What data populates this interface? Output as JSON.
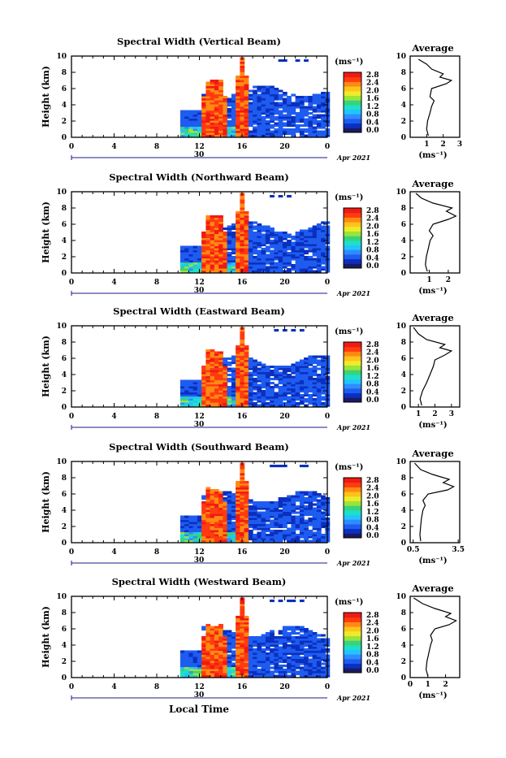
{
  "figure": {
    "x_axis_title": "Local Time",
    "date_label": "Apr 2021",
    "day_label": "30",
    "colorbar_unit": "(ms⁻¹)",
    "colorbar_ticks": [
      "2.8",
      "2.4",
      "2.0",
      "1.6",
      "1.2",
      "0.8",
      "0.4",
      "0.0"
    ],
    "colors": {
      "scale": [
        "#1a1a5e",
        "#0b2fbf",
        "#1e5cf0",
        "#2f8cff",
        "#22c4ff",
        "#1de0c8",
        "#3ad27a",
        "#9be43a",
        "#ecec2a",
        "#ffc21a",
        "#ff8a12",
        "#ff3b10",
        "#f01a14"
      ],
      "axis": "#000000",
      "background": "#ffffff"
    }
  },
  "chart_data": [
    {
      "type": "heatmap",
      "title": "Spectral Width (Vertical Beam)",
      "xlabel": "",
      "ylabel": "Height (km)",
      "xlim": [
        0,
        24
      ],
      "ylim": [
        0,
        10
      ],
      "x_ticks": [
        "0",
        "4",
        "8",
        "12",
        "16",
        "20",
        "0"
      ],
      "y_ticks": [
        "0",
        "2",
        "4",
        "6",
        "8",
        "10"
      ],
      "profile": {
        "title": "Average",
        "xlabel": "(ms⁻¹)",
        "xlim": [
          0,
          3
        ],
        "x_ticks": [
          "1",
          "2",
          "3"
        ],
        "y_ticks": [
          "0",
          "2",
          "4",
          "6",
          "8",
          "10"
        ],
        "points": [
          [
            1.1,
            0.2
          ],
          [
            1.0,
            1.0
          ],
          [
            1.05,
            2.0
          ],
          [
            1.2,
            3.0
          ],
          [
            1.3,
            3.8
          ],
          [
            1.45,
            4.5
          ],
          [
            1.2,
            5.0
          ],
          [
            1.3,
            6.0
          ],
          [
            2.2,
            6.6
          ],
          [
            2.5,
            7.0
          ],
          [
            1.8,
            7.4
          ],
          [
            2.0,
            7.8
          ],
          [
            1.3,
            8.4
          ],
          [
            1.0,
            9.0
          ],
          [
            0.5,
            9.6
          ]
        ]
      }
    },
    {
      "type": "heatmap",
      "title": "Spectral Width (Northward Beam)",
      "xlabel": "",
      "ylabel": "Height (km)",
      "xlim": [
        0,
        24
      ],
      "ylim": [
        0,
        10
      ],
      "x_ticks": [
        "0",
        "4",
        "8",
        "12",
        "16",
        "20",
        "0"
      ],
      "y_ticks": [
        "0",
        "2",
        "4",
        "6",
        "8",
        "10"
      ],
      "profile": {
        "title": "Average",
        "xlabel": "(ms⁻¹)",
        "xlim": [
          0,
          2.6
        ],
        "x_ticks": [
          "1",
          "2"
        ],
        "y_ticks": [
          "0",
          "2",
          "4",
          "6",
          "8",
          "10"
        ],
        "points": [
          [
            0.9,
            0.2
          ],
          [
            0.8,
            1.0
          ],
          [
            0.85,
            2.0
          ],
          [
            0.95,
            3.0
          ],
          [
            1.05,
            4.0
          ],
          [
            1.2,
            4.6
          ],
          [
            1.0,
            5.2
          ],
          [
            1.2,
            6.0
          ],
          [
            2.0,
            6.6
          ],
          [
            2.4,
            7.0
          ],
          [
            1.9,
            7.6
          ],
          [
            2.2,
            8.0
          ],
          [
            1.2,
            8.6
          ],
          [
            0.6,
            9.2
          ],
          [
            0.3,
            9.8
          ]
        ]
      }
    },
    {
      "type": "heatmap",
      "title": "Spectral Width (Eastward Beam)",
      "xlabel": "",
      "ylabel": "Height (km)",
      "xlim": [
        0,
        24
      ],
      "ylim": [
        0,
        10
      ],
      "x_ticks": [
        "0",
        "4",
        "8",
        "12",
        "16",
        "20",
        "0"
      ],
      "y_ticks": [
        "0",
        "2",
        "4",
        "6",
        "8",
        "10"
      ],
      "profile": {
        "title": "Average",
        "xlabel": "(ms⁻¹)",
        "xlim": [
          0.5,
          3.5
        ],
        "x_ticks": [
          "1",
          "2",
          "3"
        ],
        "y_ticks": [
          "0",
          "2",
          "4",
          "6",
          "8",
          "10"
        ],
        "points": [
          [
            1.2,
            0.2
          ],
          [
            1.1,
            1.0
          ],
          [
            1.25,
            2.0
          ],
          [
            1.5,
            3.0
          ],
          [
            1.7,
            4.0
          ],
          [
            1.9,
            5.0
          ],
          [
            2.0,
            5.8
          ],
          [
            2.6,
            6.4
          ],
          [
            3.0,
            6.9
          ],
          [
            2.3,
            7.3
          ],
          [
            2.6,
            7.7
          ],
          [
            1.5,
            8.3
          ],
          [
            1.0,
            9.0
          ],
          [
            0.7,
            9.8
          ]
        ]
      }
    },
    {
      "type": "heatmap",
      "title": "Spectral Width (Southward Beam)",
      "xlabel": "",
      "ylabel": "Height (km)",
      "xlim": [
        0,
        24
      ],
      "ylim": [
        0,
        10
      ],
      "x_ticks": [
        "0",
        "4",
        "8",
        "12",
        "16",
        "20",
        "0"
      ],
      "y_ticks": [
        "0",
        "2",
        "4",
        "6",
        "8",
        "10"
      ],
      "profile": {
        "title": "Average",
        "xlabel": "(ms⁻¹)",
        "xlim": [
          0.3,
          3.6
        ],
        "x_ticks": [
          "0.5",
          "3.5"
        ],
        "y_ticks": [
          "0",
          "2",
          "4",
          "6",
          "8",
          "10"
        ],
        "points": [
          [
            1.0,
            0.2
          ],
          [
            0.95,
            1.0
          ],
          [
            1.0,
            2.0
          ],
          [
            1.05,
            3.0
          ],
          [
            1.15,
            4.0
          ],
          [
            1.3,
            4.6
          ],
          [
            1.15,
            5.2
          ],
          [
            1.5,
            6.0
          ],
          [
            2.8,
            6.5
          ],
          [
            3.2,
            6.9
          ],
          [
            2.5,
            7.4
          ],
          [
            2.9,
            7.8
          ],
          [
            1.8,
            8.4
          ],
          [
            1.0,
            9.0
          ],
          [
            0.6,
            9.8
          ]
        ]
      }
    },
    {
      "type": "heatmap",
      "title": "Spectral Width (Westward Beam)",
      "xlabel": "Local Time",
      "ylabel": "Height (km)",
      "xlim": [
        0,
        24
      ],
      "ylim": [
        0,
        10
      ],
      "x_ticks": [
        "0",
        "4",
        "8",
        "12",
        "16",
        "20",
        "0"
      ],
      "y_ticks": [
        "0",
        "2",
        "4",
        "6",
        "8",
        "10"
      ],
      "profile": {
        "title": "Average",
        "xlabel": "(ms⁻¹)",
        "xlim": [
          0,
          2.8
        ],
        "x_ticks": [
          "0",
          "1",
          "2"
        ],
        "y_ticks": [
          "0",
          "2",
          "4",
          "6",
          "8",
          "10"
        ],
        "points": [
          [
            1.0,
            0.2
          ],
          [
            0.9,
            1.0
          ],
          [
            0.95,
            2.0
          ],
          [
            1.05,
            3.0
          ],
          [
            1.15,
            4.0
          ],
          [
            1.25,
            4.6
          ],
          [
            1.15,
            5.2
          ],
          [
            1.4,
            6.0
          ],
          [
            2.2,
            6.5
          ],
          [
            2.6,
            7.0
          ],
          [
            2.0,
            7.5
          ],
          [
            2.3,
            7.9
          ],
          [
            1.4,
            8.5
          ],
          [
            0.7,
            9.1
          ],
          [
            0.2,
            9.8
          ]
        ]
      }
    }
  ]
}
